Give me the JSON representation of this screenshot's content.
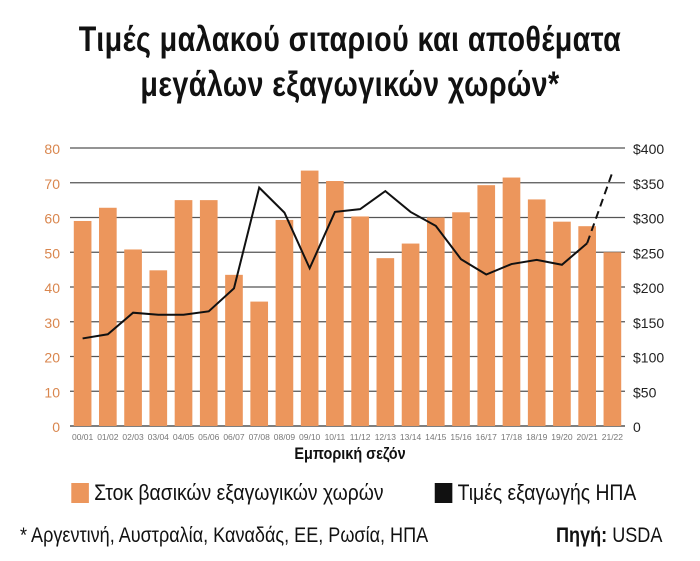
{
  "title_line1": "Τιμές μαλακού σιταριού και αποθέματα",
  "title_line2": "μεγάλων εξαγωγικών χωρών*",
  "footnote": "* Αργεντινή, Αυστραλία, Καναδάς, ΕΕ, Ρωσία, ΗΠΑ",
  "source_label": "Πηγή:",
  "source_value": "USDA",
  "colors": {
    "bar": "#ec965c",
    "line": "#111111",
    "axis_left": "#d9864e",
    "grid": "#555555"
  },
  "chart_data": {
    "type": "bar+line",
    "xlabel": "Εμπορική σεζόν",
    "categories": [
      "00/01",
      "01/02",
      "02/03",
      "03/04",
      "04/05",
      "05/06",
      "06/07",
      "07/08",
      "08/09",
      "09/10",
      "10/11",
      "11/12",
      "12/13",
      "13/14",
      "14/15",
      "15/16",
      "16/17",
      "17/18",
      "18/19",
      "19/20",
      "20/21",
      "21/22"
    ],
    "series": [
      {
        "name": "Στοκ βασικών εξαγωγικών χωρών",
        "type": "bar",
        "axis": "left",
        "values": [
          59,
          62.8,
          50.8,
          44.8,
          65,
          65,
          43.5,
          35.8,
          59.3,
          73.5,
          70.5,
          60.3,
          48.3,
          52.5,
          60,
          61.5,
          69.3,
          71.5,
          65.2,
          58.8,
          57.5,
          50
        ]
      },
      {
        "name": "Τιμές εξαγωγής ΗΠΑ",
        "type": "line",
        "axis": "right",
        "values": [
          126,
          132,
          163,
          160,
          160,
          165,
          198,
          343,
          307,
          227,
          308,
          312,
          338,
          308,
          288,
          240,
          218,
          233,
          239,
          232,
          263,
          365
        ],
        "dashed_from_index": 20
      }
    ],
    "left_axis": {
      "range": [
        0,
        80
      ],
      "ticks": [
        "0",
        "10",
        "20",
        "30",
        "40",
        "50",
        "60",
        "70",
        "80"
      ]
    },
    "right_axis": {
      "range": [
        0,
        400
      ],
      "ticks": [
        "0",
        "$50",
        "$100",
        "$150",
        "$200",
        "$250",
        "$300",
        "$350",
        "$400"
      ]
    },
    "grid": true,
    "legend_position": "bottom"
  }
}
